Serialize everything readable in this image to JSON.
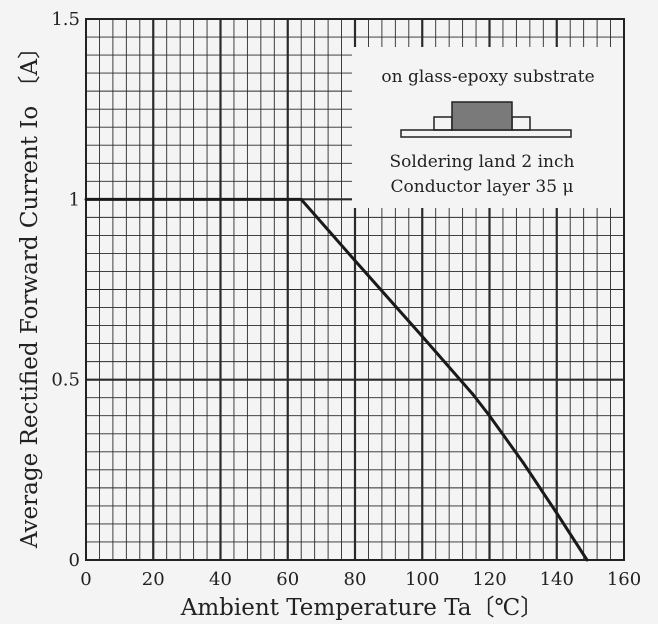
{
  "chart_data": {
    "type": "line",
    "xlabel": "Ambient Temperature Ta〔℃〕",
    "ylabel": "Average Rectified Forward Current Io 〔A〕",
    "xlim": [
      0,
      160
    ],
    "ylim": [
      0,
      1.5
    ],
    "x_ticks": [
      "0",
      "20",
      "40",
      "60",
      "80",
      "100",
      "120",
      "140",
      "160"
    ],
    "y_ticks": [
      "0",
      "0.5",
      "1",
      "1.5"
    ],
    "grid": true,
    "series": [
      {
        "x": [
          0,
          64,
          80,
          100,
          115,
          120,
          130,
          140,
          149
        ],
        "y": [
          1.0,
          1.0,
          0.83,
          0.62,
          0.46,
          0.4,
          0.27,
          0.13,
          0.0
        ]
      }
    ],
    "annotations": [
      "on glass-epoxy substrate",
      "Soldering land 2 inch",
      "Conductor layer 35 μ"
    ],
    "colors": {
      "line": "#1a1a1a",
      "grid": "#2a2a2a",
      "package": "#7a7a7a",
      "background": "#f4f4f4"
    }
  }
}
